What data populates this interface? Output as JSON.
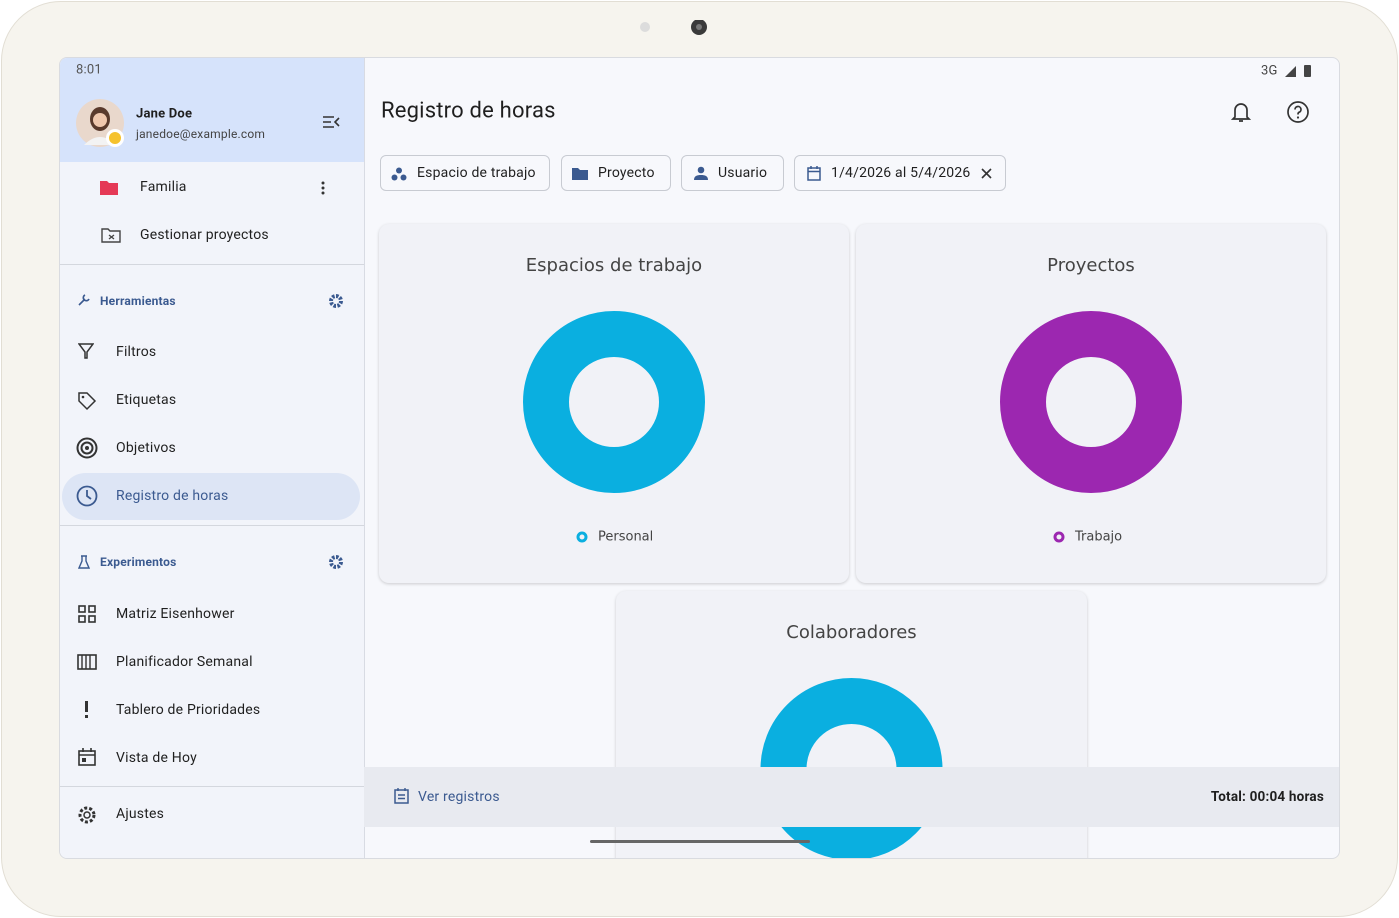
{
  "status_bar": {
    "time": "8:01",
    "network": "3G"
  },
  "drawer": {
    "user": {
      "name": "Jane Doe",
      "email": "janedoe@example.com"
    },
    "projects": [
      "Familia",
      "Gestionar proyectos"
    ],
    "tools": {
      "title": "Herramientas",
      "items": [
        "Filtros",
        "Etiquetas",
        "Objetivos",
        "Registro de horas"
      ]
    },
    "experiments": {
      "title": "Experimentos",
      "items": [
        "Matriz Eisenhower",
        "Planificador Semanal",
        "Tablero de Prioridades",
        "Vista de Hoy"
      ]
    },
    "settings": "Ajustes"
  },
  "header": {
    "title": "Registro de horas"
  },
  "filters": [
    "Espacio de trabajo",
    "Proyecto",
    "Usuario",
    "1/4/2026 al 5/4/2026"
  ],
  "charts": [
    {
      "type": "donut",
      "title": "Espacios de trabajo",
      "categories": [
        "Personal"
      ],
      "values": [
        100
      ],
      "colors": [
        "#0aafe0"
      ]
    },
    {
      "type": "donut",
      "title": "Proyectos",
      "categories": [
        "Trabajo"
      ],
      "values": [
        100
      ],
      "colors": [
        "#9c27b0"
      ]
    },
    {
      "type": "donut",
      "title": "Colaboradores",
      "categories": [
        null
      ],
      "values": [
        100
      ],
      "colors": [
        "#0aafe0"
      ]
    }
  ],
  "footer": {
    "link": "Ver registros",
    "total": "Total: 00:04 horas"
  }
}
